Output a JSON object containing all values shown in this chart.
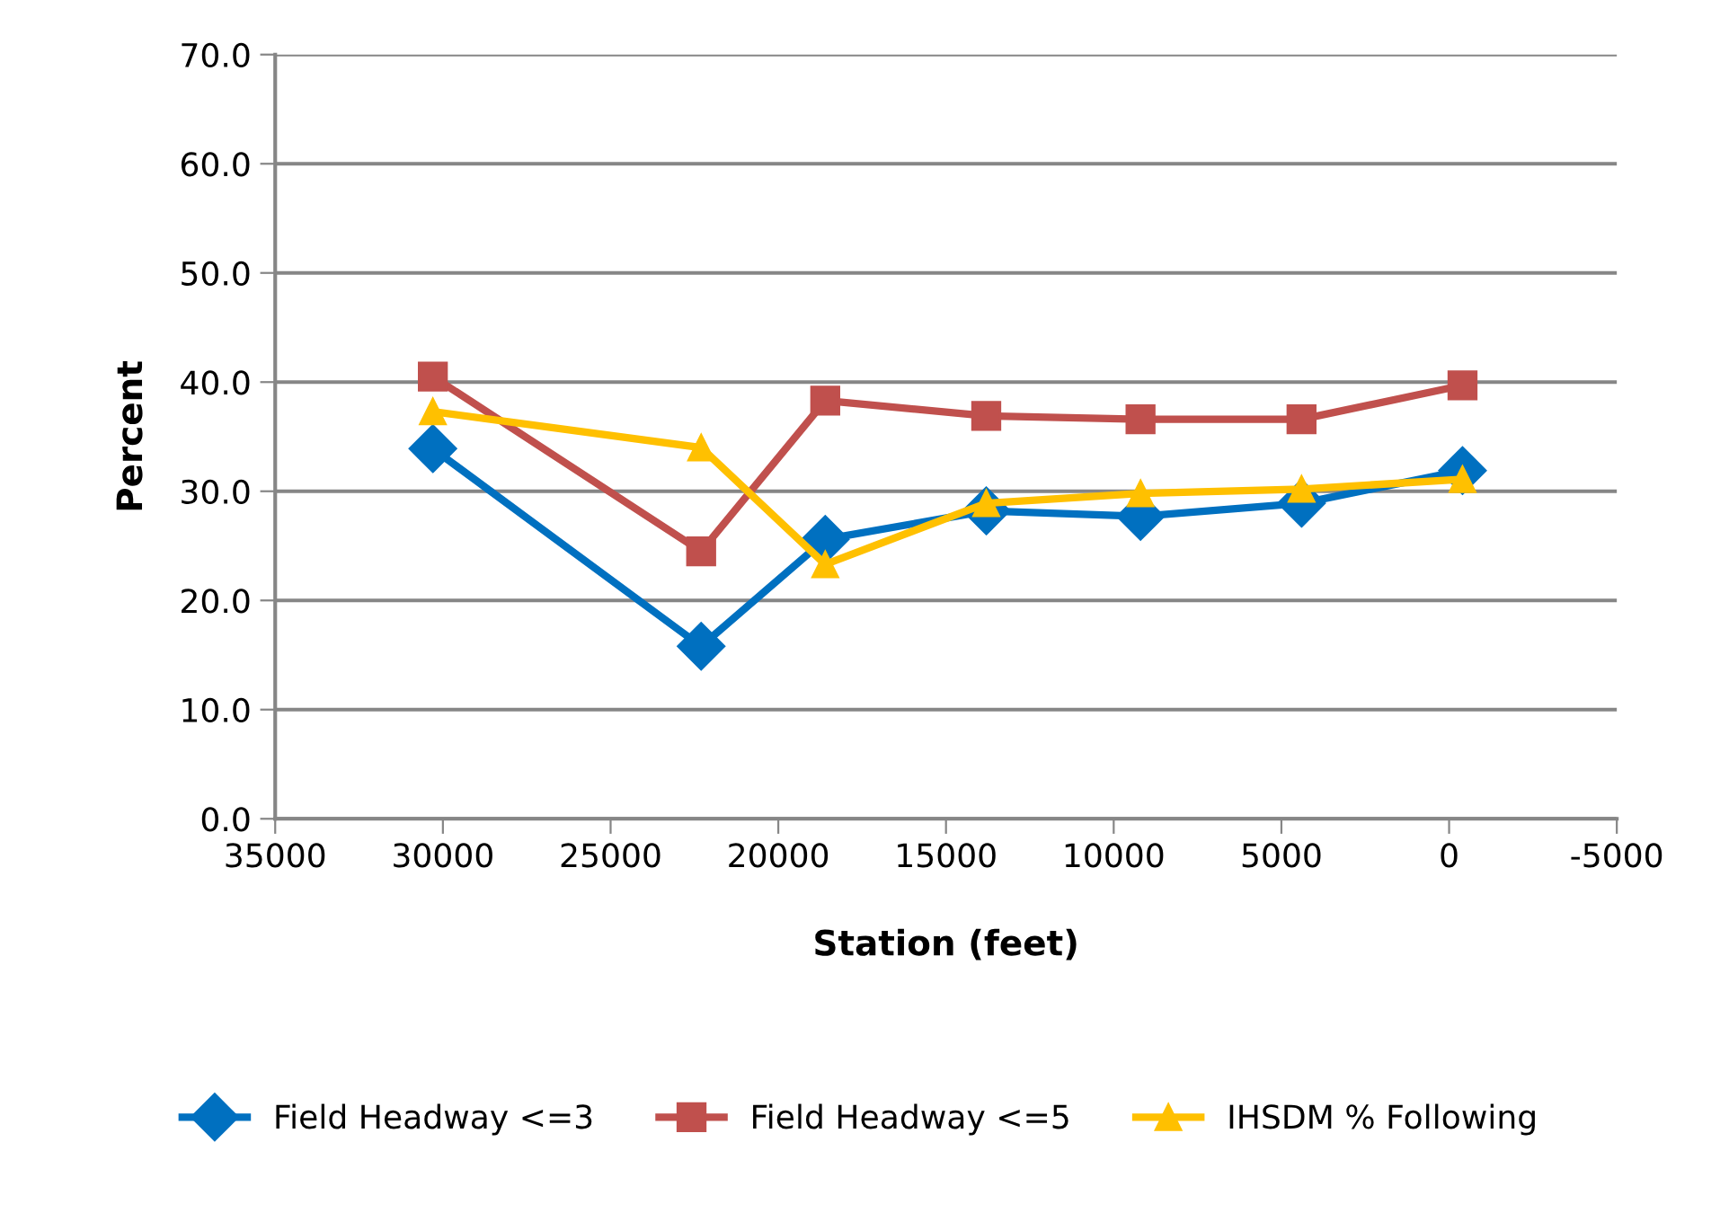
{
  "chart_data": {
    "type": "line",
    "xlabel": "Station (feet)",
    "ylabel": "Percent",
    "xlim": [
      35000,
      -5000
    ],
    "xticks": [
      35000,
      30000,
      25000,
      20000,
      15000,
      10000,
      5000,
      0,
      -5000
    ],
    "ylim": [
      0,
      70
    ],
    "yticks": [
      {
        "value": 0,
        "label": "0.0"
      },
      {
        "value": 10,
        "label": "10.0"
      },
      {
        "value": 20,
        "label": "20.0"
      },
      {
        "value": 30,
        "label": "30.0"
      },
      {
        "value": 40,
        "label": "40.0"
      },
      {
        "value": 50,
        "label": "50.0"
      },
      {
        "value": 60,
        "label": "60.0"
      },
      {
        "value": 70,
        "label": "70.0"
      }
    ],
    "x": [
      30300,
      22300,
      18600,
      13800,
      9200,
      4400,
      -400
    ],
    "series": [
      {
        "name": "Field Headway <=3",
        "color": "#0070c0",
        "marker": "diamond",
        "values": [
          33.9,
          15.8,
          25.6,
          28.2,
          27.7,
          28.9,
          31.9
        ]
      },
      {
        "name": "Field Headway <=5",
        "color": "#c0504d",
        "marker": "square",
        "values": [
          40.5,
          24.5,
          38.3,
          36.9,
          36.6,
          36.6,
          39.7
        ]
      },
      {
        "name": "IHSDM % Following",
        "color": "#ffc000",
        "marker": "triangle",
        "values": [
          37.3,
          34.0,
          23.3,
          28.9,
          29.8,
          30.2,
          31.1
        ]
      }
    ],
    "grid": "y",
    "legend": "bottom",
    "line_style": "solid"
  }
}
